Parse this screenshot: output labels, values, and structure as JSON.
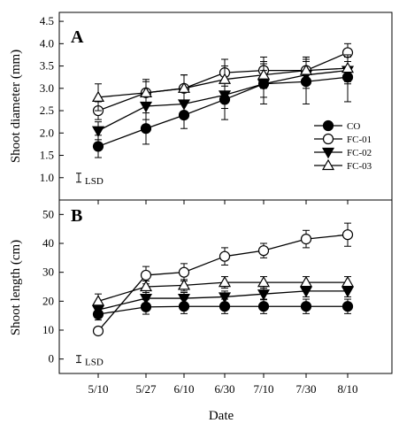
{
  "chart_data": [
    {
      "panel": "A",
      "type": "line",
      "ylabel": "Shoot diameter (mm)",
      "ylim": [
        0.5,
        4.7
      ],
      "yticks": [
        "1.0",
        "1.5",
        "2.0",
        "2.5",
        "3.0",
        "3.5",
        "4.0",
        "4.5"
      ],
      "categories": [
        "5/10",
        "5/27",
        "6/10",
        "6/30",
        "7/10",
        "7/30",
        "8/10"
      ],
      "lsd_label": "LSD",
      "lsd_half": 0.1,
      "series": [
        {
          "name": "CO",
          "marker": "circle-filled",
          "values": [
            1.7,
            2.1,
            2.4,
            2.75,
            3.1,
            3.15,
            3.25
          ],
          "err": [
            0.25,
            0.35,
            0.3,
            0.45,
            0.45,
            0.5,
            0.55
          ]
        },
        {
          "name": "FC-01",
          "marker": "circle-open",
          "values": [
            2.5,
            2.9,
            3.0,
            3.35,
            3.4,
            3.4,
            3.8
          ],
          "err": [
            0.2,
            0.25,
            0.3,
            0.3,
            0.3,
            0.3,
            0.2
          ]
        },
        {
          "name": "FC-02",
          "marker": "triangle-down-filled",
          "values": [
            2.05,
            2.6,
            2.65,
            2.85,
            3.1,
            3.3,
            3.4
          ],
          "err": [
            0.2,
            0.3,
            0.3,
            0.3,
            0.3,
            0.3,
            0.3
          ]
        },
        {
          "name": "FC-03",
          "marker": "triangle-up-open",
          "values": [
            2.8,
            2.9,
            3.0,
            3.2,
            3.3,
            3.4,
            3.45
          ],
          "err": [
            0.3,
            0.3,
            0.3,
            0.3,
            0.3,
            0.3,
            0.3
          ]
        }
      ]
    },
    {
      "panel": "B",
      "type": "line",
      "ylabel": "Shoot length (cm)",
      "ylim": [
        -5,
        55
      ],
      "yticks": [
        "0",
        "10",
        "20",
        "30",
        "40",
        "50"
      ],
      "categories": [
        "5/10",
        "5/27",
        "6/10",
        "6/30",
        "7/10",
        "7/30",
        "8/10"
      ],
      "lsd_label": "LSD",
      "lsd_half": 1.2,
      "series": [
        {
          "name": "CO",
          "marker": "circle-filled",
          "values": [
            15.5,
            18.0,
            18.2,
            18.2,
            18.2,
            18.2,
            18.2
          ],
          "err": [
            2.0,
            2.5,
            2.5,
            2.5,
            2.5,
            2.5,
            2.5
          ]
        },
        {
          "name": "FC-01",
          "marker": "circle-open",
          "values": [
            9.7,
            29.0,
            30.0,
            35.5,
            37.5,
            41.5,
            43.0
          ],
          "err": [
            1.0,
            3.0,
            3.0,
            3.0,
            2.5,
            3.0,
            4.0
          ]
        },
        {
          "name": "FC-02",
          "marker": "triangle-down-filled",
          "values": [
            17.0,
            21.0,
            21.0,
            21.5,
            22.5,
            23.5,
            23.5
          ],
          "err": [
            2.0,
            2.0,
            2.0,
            2.0,
            2.0,
            2.0,
            2.0
          ]
        },
        {
          "name": "FC-03",
          "marker": "triangle-up-open",
          "values": [
            20.0,
            25.0,
            25.5,
            26.5,
            26.5,
            26.5,
            26.5
          ],
          "err": [
            2.5,
            2.0,
            2.0,
            2.0,
            2.0,
            2.0,
            2.0
          ]
        }
      ]
    }
  ],
  "xlabel": "Date",
  "legend_placement": "panel A, lower-right",
  "colors": {
    "line": "#000000",
    "fill": "#000000",
    "background": "#ffffff"
  }
}
